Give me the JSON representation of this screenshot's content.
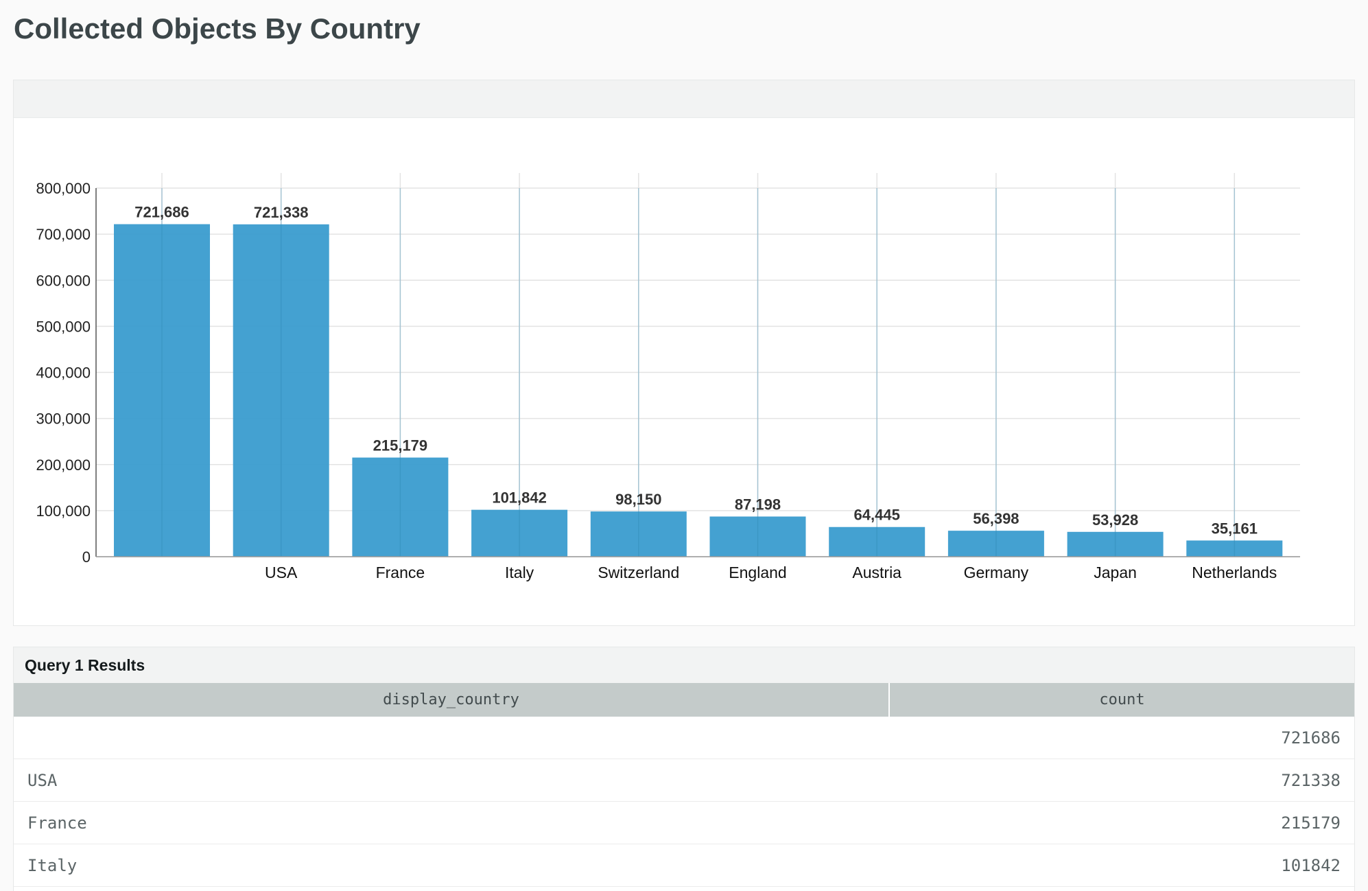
{
  "page": {
    "title": "Collected Objects By Country"
  },
  "chart_data": {
    "type": "bar",
    "categories": [
      "",
      "USA",
      "France",
      "Italy",
      "Switzerland",
      "England",
      "Austria",
      "Germany",
      "Japan",
      "Netherlands"
    ],
    "values": [
      721686,
      721338,
      215179,
      101842,
      98150,
      87198,
      64445,
      56398,
      53928,
      35161
    ],
    "value_labels": [
      "721,686",
      "721,338",
      "215,179",
      "101,842",
      "98,150",
      "87,198",
      "64,445",
      "56,398",
      "53,928",
      "35,161"
    ],
    "yticks": [
      "0",
      "100,000",
      "200,000",
      "300,000",
      "400,000",
      "500,000",
      "600,000",
      "700,000",
      "800,000"
    ],
    "ylim": [
      0,
      800000
    ],
    "grid": true,
    "bar_color": "#3a9ccf"
  },
  "results": {
    "title": "Query 1 Results",
    "columns": [
      "display_country",
      "count"
    ],
    "rows": [
      [
        "",
        "721686"
      ],
      [
        "USA",
        "721338"
      ],
      [
        "France",
        "215179"
      ],
      [
        "Italy",
        "101842"
      ],
      [
        "",
        ""
      ]
    ]
  }
}
